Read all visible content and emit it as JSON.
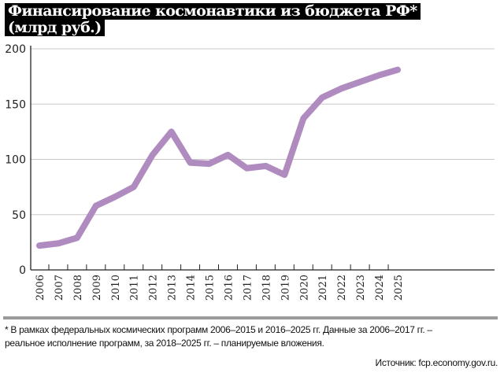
{
  "chart_data": {
    "type": "line",
    "title": "Финансирование космонавтики из бюджета РФ*",
    "subtitle": "(млрд руб.)",
    "categories": [
      "2006",
      "2007",
      "2008",
      "2009",
      "2010",
      "2011",
      "2012",
      "2013",
      "2014",
      "2015",
      "2016",
      "2017",
      "2018",
      "2019",
      "2020",
      "2021",
      "2022",
      "2023",
      "2024",
      "2025"
    ],
    "series": [
      {
        "name": "Финансирование",
        "values": [
          22,
          24,
          29,
          58,
          66,
          75,
          104,
          125,
          97,
          96,
          104,
          92,
          94,
          86,
          137,
          156,
          164,
          170,
          176,
          181
        ]
      }
    ],
    "yticks": [
      0,
      50,
      100,
      150,
      200
    ],
    "ylim": [
      0,
      200
    ],
    "grid": true,
    "colors": {
      "line": "#b08bc0",
      "grid": "#c8c8c8"
    }
  },
  "footnote": {
    "line1": "* В рамках федеральных космических программ 2006–2015 и 2016–2025 гг. Данные за 2006–2017 гг. –",
    "line2": "реальное исполнение программ, за 2018–2025 гг. – планируемые вложения."
  },
  "source": "Источник: fcp.economy.gov.ru."
}
